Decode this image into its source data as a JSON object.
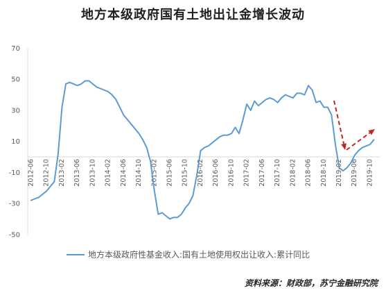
{
  "chart_data": {
    "type": "line",
    "title": "地方本级政府国有土地出让金增长波动",
    "x": [
      "2012-06",
      "2012-07",
      "2012-08",
      "2012-09",
      "2012-10",
      "2012-11",
      "2012-12",
      "2013-01",
      "2013-02",
      "2013-03",
      "2013-04",
      "2013-05",
      "2013-06",
      "2013-07",
      "2013-08",
      "2013-09",
      "2013-10",
      "2013-11",
      "2013-12",
      "2014-01",
      "2014-02",
      "2014-03",
      "2014-04",
      "2014-05",
      "2014-06",
      "2014-07",
      "2014-08",
      "2014-09",
      "2014-10",
      "2014-11",
      "2014-12",
      "2015-01",
      "2015-02",
      "2015-03",
      "2015-04",
      "2015-05",
      "2015-06",
      "2015-07",
      "2015-08",
      "2015-09",
      "2015-10",
      "2015-11",
      "2015-12",
      "2016-01",
      "2016-02",
      "2016-03",
      "2016-04",
      "2016-05",
      "2016-06",
      "2016-07",
      "2016-08",
      "2016-09",
      "2016-10",
      "2016-11",
      "2016-12",
      "2017-01",
      "2017-02",
      "2017-03",
      "2017-04",
      "2017-05",
      "2017-06",
      "2017-07",
      "2017-08",
      "2017-09",
      "2017-10",
      "2017-11",
      "2017-12",
      "2018-01",
      "2018-02",
      "2018-03",
      "2018-04",
      "2018-05",
      "2018-06",
      "2018-07",
      "2018-08",
      "2018-09",
      "2018-10",
      "2018-11",
      "2018-12",
      "2019-01",
      "2019-02",
      "2019-03",
      "2019-04",
      "2019-05",
      "2019-06",
      "2019-07",
      "2019-08",
      "2019-09",
      "2019-10",
      "2019-11"
    ],
    "xticks": [
      "2012-06",
      "2012-10",
      "2013-02",
      "2013-06",
      "2013-10",
      "2014-02",
      "2014-06",
      "2014-10",
      "2015-02",
      "2015-06",
      "2015-10",
      "2016-02",
      "2016-06",
      "2016-10",
      "2017-02",
      "2017-06",
      "2017-10",
      "2018-02",
      "2018-06",
      "2018-10",
      "2019-02",
      "2019-06",
      "2019-10"
    ],
    "yticks": [
      70,
      50,
      30,
      10,
      -10,
      -30,
      -50
    ],
    "ylim": [
      -50,
      70
    ],
    "grid": false,
    "legend_position": "bottom",
    "series": [
      {
        "name": "地方本级政府性基金收入:国有土地使用权出让收入:累计同比",
        "color": "#5b9bd5",
        "values": [
          -28,
          -27,
          -26,
          -24,
          -22,
          -19,
          -16,
          2,
          32,
          47,
          48,
          47,
          46,
          47,
          49,
          49,
          47,
          45,
          44,
          43,
          42,
          40,
          37,
          32,
          27,
          24,
          21,
          18,
          15,
          11,
          6,
          -3,
          -22,
          -37,
          -36,
          -38,
          -40,
          -39,
          -39,
          -37,
          -33,
          -30,
          -25,
          -12,
          4,
          6,
          7,
          9,
          11,
          13,
          14,
          14,
          15,
          19,
          15,
          24,
          34,
          30,
          36,
          33,
          35,
          37,
          38,
          37,
          35,
          38,
          40,
          39,
          38,
          41,
          41,
          40,
          46,
          43,
          35,
          36,
          32,
          32,
          27,
          8,
          -7,
          -9,
          -7,
          -4,
          1,
          4,
          6,
          7,
          8,
          11
        ]
      }
    ],
    "annotation_color": "#c0281f"
  },
  "source": "资料来源：财政部，苏宁金融研究院"
}
